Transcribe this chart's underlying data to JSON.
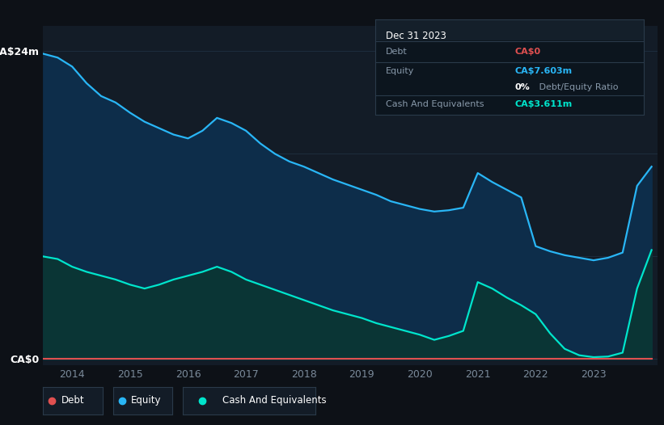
{
  "background_color": "#0d1117",
  "plot_bg_color": "#131c27",
  "title_box_bg": "#0f1923",
  "y_labels": [
    "CA$0",
    "CA$24m"
  ],
  "x_tick_labels": [
    "2014",
    "2015",
    "2016",
    "2017",
    "2018",
    "2019",
    "2020",
    "2021",
    "2022",
    "2023"
  ],
  "equity_color": "#29b6f6",
  "equity_fill": "#0d2d4a",
  "cash_color": "#00e5cc",
  "cash_fill": "#0a3535",
  "debt_color": "#e05050",
  "legend_bg": "#131c27",
  "legend_border": "#2a3a4a",
  "grid_color": "#1e2d3d",
  "text_color": "#ffffff",
  "dim_text_color": "#7a8a9a",
  "tooltip_bg": "#0c151e",
  "tooltip_border": "#2a3a4a",
  "equity_years": [
    2013.5,
    2013.75,
    2014.0,
    2014.25,
    2014.5,
    2014.75,
    2015.0,
    2015.25,
    2015.5,
    2015.75,
    2016.0,
    2016.25,
    2016.5,
    2016.75,
    2017.0,
    2017.25,
    2017.5,
    2017.75,
    2018.0,
    2018.25,
    2018.5,
    2018.75,
    2019.0,
    2019.25,
    2019.5,
    2019.75,
    2020.0,
    2020.25,
    2020.5,
    2020.75,
    2021.0,
    2021.25,
    2021.5,
    2021.75,
    2022.0,
    2022.25,
    2022.5,
    2022.75,
    2023.0,
    2023.25,
    2023.5,
    2023.75,
    2024.0
  ],
  "equity_values": [
    23.8,
    23.5,
    22.8,
    21.5,
    20.5,
    20.0,
    19.2,
    18.5,
    18.0,
    17.5,
    17.2,
    17.8,
    18.8,
    18.4,
    17.8,
    16.8,
    16.0,
    15.4,
    15.0,
    14.5,
    14.0,
    13.6,
    13.2,
    12.8,
    12.3,
    12.0,
    11.7,
    11.5,
    11.6,
    11.8,
    14.5,
    13.8,
    13.2,
    12.6,
    8.8,
    8.4,
    8.1,
    7.9,
    7.7,
    7.9,
    8.3,
    13.5,
    15.0
  ],
  "cash_years": [
    2013.5,
    2013.75,
    2014.0,
    2014.25,
    2014.5,
    2014.75,
    2015.0,
    2015.25,
    2015.5,
    2015.75,
    2016.0,
    2016.25,
    2016.5,
    2016.75,
    2017.0,
    2017.25,
    2017.5,
    2017.75,
    2018.0,
    2018.25,
    2018.5,
    2018.75,
    2019.0,
    2019.25,
    2019.5,
    2019.75,
    2020.0,
    2020.25,
    2020.5,
    2020.75,
    2021.0,
    2021.25,
    2021.5,
    2021.75,
    2022.0,
    2022.25,
    2022.5,
    2022.75,
    2023.0,
    2023.25,
    2023.5,
    2023.75,
    2024.0
  ],
  "cash_values": [
    8.0,
    7.8,
    7.2,
    6.8,
    6.5,
    6.2,
    5.8,
    5.5,
    5.8,
    6.2,
    6.5,
    6.8,
    7.2,
    6.8,
    6.2,
    5.8,
    5.4,
    5.0,
    4.6,
    4.2,
    3.8,
    3.5,
    3.2,
    2.8,
    2.5,
    2.2,
    1.9,
    1.5,
    1.8,
    2.2,
    6.0,
    5.5,
    4.8,
    4.2,
    3.5,
    2.0,
    0.8,
    0.3,
    0.15,
    0.2,
    0.5,
    5.5,
    8.5
  ],
  "debt_years": [
    2013.5,
    2024.0
  ],
  "debt_values": [
    0.0,
    0.0
  ],
  "xlim": [
    2013.5,
    2024.1
  ],
  "ylim": [
    -0.5,
    26
  ],
  "ytick_positions": [
    0,
    8,
    16,
    24
  ],
  "xtick_positions": [
    2014,
    2015,
    2016,
    2017,
    2018,
    2019,
    2020,
    2021,
    2022,
    2023
  ]
}
